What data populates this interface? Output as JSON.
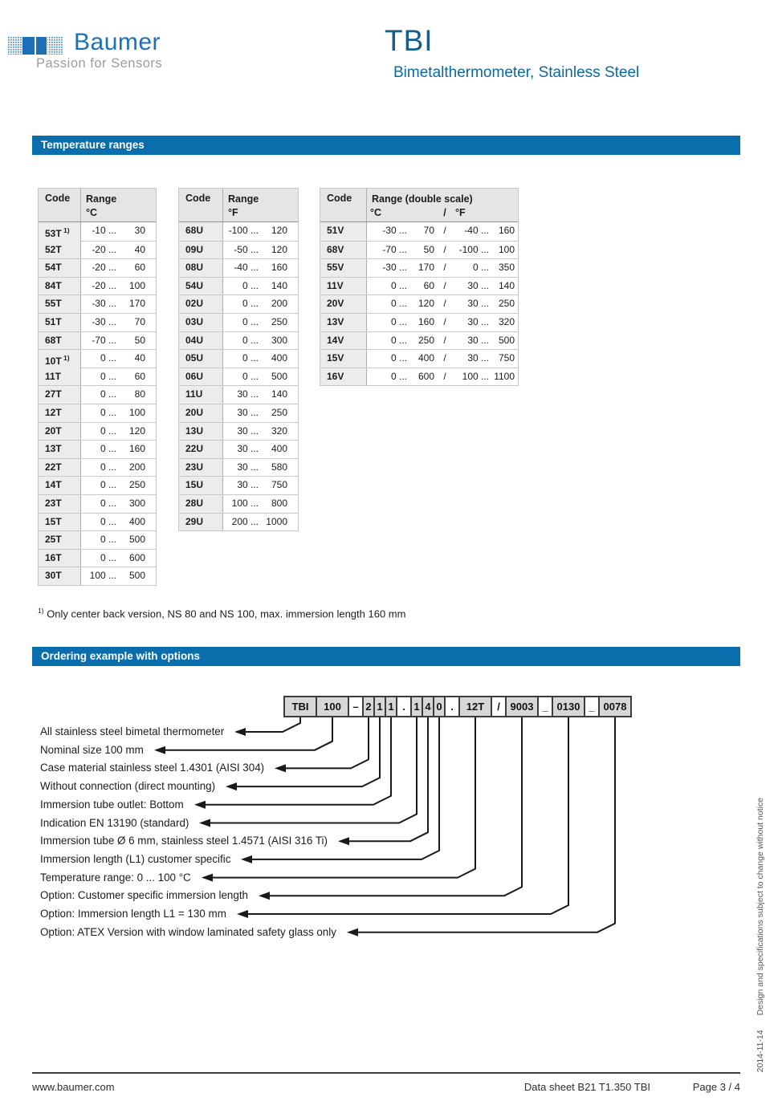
{
  "header": {
    "logo_name": "Baumer",
    "logo_tagline": "Passion for Sensors",
    "title": "TBI",
    "subtitle": "Bimetalthermometer, Stainless Steel"
  },
  "sections": {
    "temperature_ranges": "Temperature ranges",
    "ordering_example": "Ordering example with options"
  },
  "tables": {
    "celsius": {
      "headers": {
        "code": "Code",
        "range": "Range",
        "unit": "°C"
      },
      "rows": [
        {
          "code": "53T",
          "sup": "1)",
          "from": "-10 ...",
          "to": "30"
        },
        {
          "code": "52T",
          "sup": "",
          "from": "-20 ...",
          "to": "40"
        },
        {
          "code": "54T",
          "sup": "",
          "from": "-20 ...",
          "to": "60"
        },
        {
          "code": "84T",
          "sup": "",
          "from": "-20 ...",
          "to": "100"
        },
        {
          "code": "55T",
          "sup": "",
          "from": "-30 ...",
          "to": "170"
        },
        {
          "code": "51T",
          "sup": "",
          "from": "-30 ...",
          "to": "70"
        },
        {
          "code": "68T",
          "sup": "",
          "from": "-70 ...",
          "to": "50"
        },
        {
          "code": "10T",
          "sup": "1)",
          "from": "0 ...",
          "to": "40"
        },
        {
          "code": "11T",
          "sup": "",
          "from": "0 ...",
          "to": "60"
        },
        {
          "code": "27T",
          "sup": "",
          "from": "0 ...",
          "to": "80"
        },
        {
          "code": "12T",
          "sup": "",
          "from": "0 ...",
          "to": "100"
        },
        {
          "code": "20T",
          "sup": "",
          "from": "0 ...",
          "to": "120"
        },
        {
          "code": "13T",
          "sup": "",
          "from": "0 ...",
          "to": "160"
        },
        {
          "code": "22T",
          "sup": "",
          "from": "0 ...",
          "to": "200"
        },
        {
          "code": "14T",
          "sup": "",
          "from": "0 ...",
          "to": "250"
        },
        {
          "code": "23T",
          "sup": "",
          "from": "0 ...",
          "to": "300"
        },
        {
          "code": "15T",
          "sup": "",
          "from": "0 ...",
          "to": "400"
        },
        {
          "code": "25T",
          "sup": "",
          "from": "0 ...",
          "to": "500"
        },
        {
          "code": "16T",
          "sup": "",
          "from": "0 ...",
          "to": "600"
        },
        {
          "code": "30T",
          "sup": "",
          "from": "100 ...",
          "to": "500"
        }
      ]
    },
    "fahrenheit": {
      "headers": {
        "code": "Code",
        "range": "Range",
        "unit": "°F"
      },
      "rows": [
        {
          "code": "68U",
          "sup": "",
          "from": "-100 ...",
          "to": "120"
        },
        {
          "code": "09U",
          "sup": "",
          "from": "-50 ...",
          "to": "120"
        },
        {
          "code": "08U",
          "sup": "",
          "from": "-40 ...",
          "to": "160"
        },
        {
          "code": "54U",
          "sup": "",
          "from": "0 ...",
          "to": "140"
        },
        {
          "code": "02U",
          "sup": "",
          "from": "0 ...",
          "to": "200"
        },
        {
          "code": "03U",
          "sup": "",
          "from": "0 ...",
          "to": "250"
        },
        {
          "code": "04U",
          "sup": "",
          "from": "0 ...",
          "to": "300"
        },
        {
          "code": "05U",
          "sup": "",
          "from": "0 ...",
          "to": "400"
        },
        {
          "code": "06U",
          "sup": "",
          "from": "0 ...",
          "to": "500"
        },
        {
          "code": "11U",
          "sup": "",
          "from": "30 ...",
          "to": "140"
        },
        {
          "code": "20U",
          "sup": "",
          "from": "30 ...",
          "to": "250"
        },
        {
          "code": "13U",
          "sup": "",
          "from": "30 ...",
          "to": "320"
        },
        {
          "code": "22U",
          "sup": "",
          "from": "30 ...",
          "to": "400"
        },
        {
          "code": "23U",
          "sup": "",
          "from": "30 ...",
          "to": "580"
        },
        {
          "code": "15U",
          "sup": "",
          "from": "30 ...",
          "to": "750"
        },
        {
          "code": "28U",
          "sup": "",
          "from": "100 ...",
          "to": "800"
        },
        {
          "code": "29U",
          "sup": "",
          "from": "200 ...",
          "to": "1000"
        }
      ]
    },
    "double_scale": {
      "headers": {
        "code": "Code",
        "range": "Range (double scale)",
        "unit_c": "°C",
        "slash": "/",
        "unit_f": "°F"
      },
      "rows": [
        {
          "code": "51V",
          "c_from": "-30 ...",
          "c_to": "70",
          "slash": "/",
          "f_from": "-40 ...",
          "f_to": "160"
        },
        {
          "code": "68V",
          "c_from": "-70 ...",
          "c_to": "50",
          "slash": "/",
          "f_from": "-100 ...",
          "f_to": "100"
        },
        {
          "code": "55V",
          "c_from": "-30 ...",
          "c_to": "170",
          "slash": "/",
          "f_from": "0 ...",
          "f_to": "350"
        },
        {
          "code": "11V",
          "c_from": "0 ...",
          "c_to": "60",
          "slash": "/",
          "f_from": "30 ...",
          "f_to": "140"
        },
        {
          "code": "20V",
          "c_from": "0 ...",
          "c_to": "120",
          "slash": "/",
          "f_from": "30 ...",
          "f_to": "250"
        },
        {
          "code": "13V",
          "c_from": "0 ...",
          "c_to": "160",
          "slash": "/",
          "f_from": "30 ...",
          "f_to": "320"
        },
        {
          "code": "14V",
          "c_from": "0 ...",
          "c_to": "250",
          "slash": "/",
          "f_from": "30 ...",
          "f_to": "500"
        },
        {
          "code": "15V",
          "c_from": "0 ...",
          "c_to": "400",
          "slash": "/",
          "f_from": "30 ...",
          "f_to": "750"
        },
        {
          "code": "16V",
          "c_from": "0 ...",
          "c_to": "600",
          "slash": "/",
          "f_from": "100 ...",
          "f_to": "1100"
        }
      ]
    }
  },
  "footnote": {
    "sup": "1)",
    "text": "Only center back version, NS 80 and NS 100, max. immersion length 160 mm"
  },
  "ordering": {
    "boxes": [
      {
        "label": "TBI",
        "type": "value"
      },
      {
        "label": "100",
        "type": "value"
      },
      {
        "label": "–",
        "type": "sep"
      },
      {
        "label": "2",
        "type": "value"
      },
      {
        "label": "1",
        "type": "value"
      },
      {
        "label": "1",
        "type": "value"
      },
      {
        "label": ".",
        "type": "sep"
      },
      {
        "label": "1",
        "type": "value"
      },
      {
        "label": "4",
        "type": "value"
      },
      {
        "label": "0",
        "type": "value"
      },
      {
        "label": ".",
        "type": "sep"
      },
      {
        "label": "12T",
        "type": "value"
      },
      {
        "label": "/",
        "type": "sep"
      },
      {
        "label": "9003",
        "type": "value"
      },
      {
        "label": "_",
        "type": "sep"
      },
      {
        "label": "0130",
        "type": "value"
      },
      {
        "label": "_",
        "type": "sep"
      },
      {
        "label": "0078",
        "type": "value"
      }
    ],
    "labels": [
      "All stainless steel bimetal thermometer",
      "Nominal size 100 mm",
      "Case material stainless steel 1.4301 (AISI 304)",
      "Without connection (direct mounting)",
      "Immersion tube outlet: Bottom",
      "Indication EN 13190 (standard)",
      "Immersion tube Ø 6 mm, stainless steel 1.4571 (AISI 316 Ti)",
      "Immersion length (L1) customer specific",
      "Temperature range: 0 ... 100 °C",
      "Option: Customer specific immersion length",
      "Option: Immersion length L1 = 130 mm",
      "Option: ATEX Version with window laminated safety glass only"
    ]
  },
  "sidebar_note": {
    "date": "2014-11-14",
    "text": "Design and specifications subject to change without notice"
  },
  "footer": {
    "website": "www.baumer.com",
    "datasheet": "Data sheet B21 T1.350 TBI",
    "page": "Page 3 / 4"
  },
  "colors": {
    "banner_blue": "#0a6dac",
    "logo_blue": "#1d70b7",
    "title_blue": "#175e8b",
    "subtitle_blue": "#0c689e",
    "tagline_gray": "#9c9c9c",
    "table_header_bg": "#e5e5e5",
    "code_column_bg": "#ececec",
    "box_fill": "#d7d7d7",
    "line_black": "#1a1a1a"
  }
}
